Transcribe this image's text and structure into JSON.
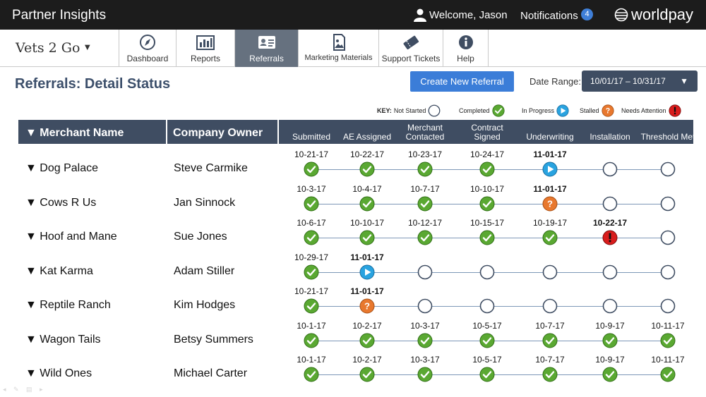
{
  "header": {
    "app_title": "Partner Insights",
    "welcome": "Welcome, Jason",
    "notifications_label": "Notifications",
    "notifications_count": "4",
    "brand": "worldpay"
  },
  "company_selector": {
    "name": "Vets 2 Go",
    "caret": "▼"
  },
  "tabs": [
    {
      "label": "Dashboard",
      "icon": "compass-icon",
      "active": false
    },
    {
      "label": "Reports",
      "icon": "bar-chart-icon",
      "active": false
    },
    {
      "label": "Referrals",
      "icon": "id-card-icon",
      "active": true
    },
    {
      "label": "Marketing Materials",
      "icon": "image-file-icon",
      "active": false
    },
    {
      "label": "Support Tickets",
      "icon": "ticket-icon",
      "active": false
    },
    {
      "label": "Help",
      "icon": "info-icon",
      "active": false
    }
  ],
  "page": {
    "title": "Referrals: Detail Status",
    "create_button": "Create New Referral",
    "date_range_label": "Date Range:",
    "date_range_value": "10/01/17 – 10/31/17"
  },
  "key": {
    "title": "KEY:",
    "items": [
      {
        "label": "Not Started",
        "status": "not_started"
      },
      {
        "label": "Completed",
        "status": "completed"
      },
      {
        "label": "In Progress",
        "status": "in_progress"
      },
      {
        "label": "Stalled",
        "status": "stalled"
      },
      {
        "label": "Needs Attention",
        "status": "attention"
      }
    ]
  },
  "colors": {
    "header_bg": "#3f4d62",
    "completed": "#5aa832",
    "in_progress": "#29a3e0",
    "stalled": "#e8782e",
    "attention": "#d91c1c",
    "accent": "#3b7dd8"
  },
  "table": {
    "col_merchant": "▼ Merchant Name",
    "col_owner": "Company Owner",
    "stages": [
      "Submitted",
      "AE Assigned",
      "Merchant Contacted",
      "Contract Signed",
      "Underwriting",
      "Installation",
      "Threshold Met"
    ],
    "rows": [
      {
        "merchant": "▼ Dog Palace",
        "owner": "Steve Carmike",
        "dates": [
          "10-21-17",
          "10-22-17",
          "10-23-17",
          "10-24-17",
          "11-01-17",
          "",
          ""
        ],
        "status": [
          "completed",
          "completed",
          "completed",
          "completed",
          "in_progress",
          "not_started",
          "not_started"
        ]
      },
      {
        "merchant": "▼ Cows R Us",
        "owner": "Jan Sinnock",
        "dates": [
          "10-3-17",
          "10-4-17",
          "10-7-17",
          "10-10-17",
          "11-01-17",
          "",
          ""
        ],
        "status": [
          "completed",
          "completed",
          "completed",
          "completed",
          "stalled",
          "not_started",
          "not_started"
        ]
      },
      {
        "merchant": "▼ Hoof and Mane",
        "owner": "Sue Jones",
        "dates": [
          "10-6-17",
          "10-10-17",
          "10-12-17",
          "10-15-17",
          "10-19-17",
          "10-22-17",
          ""
        ],
        "status": [
          "completed",
          "completed",
          "completed",
          "completed",
          "completed",
          "attention",
          "not_started"
        ]
      },
      {
        "merchant": "▼ Kat Karma",
        "owner": "Adam Stiller",
        "dates": [
          "10-29-17",
          "11-01-17",
          "",
          "",
          "",
          "",
          ""
        ],
        "status": [
          "completed",
          "in_progress",
          "not_started",
          "not_started",
          "not_started",
          "not_started",
          "not_started"
        ]
      },
      {
        "merchant": "▼ Reptile Ranch",
        "owner": "Kim Hodges",
        "dates": [
          "10-21-17",
          "11-01-17",
          "",
          "",
          "",
          "",
          ""
        ],
        "status": [
          "completed",
          "stalled",
          "not_started",
          "not_started",
          "not_started",
          "not_started",
          "not_started"
        ]
      },
      {
        "merchant": "▼ Wagon Tails",
        "owner": "Betsy Summers",
        "dates": [
          "10-1-17",
          "10-2-17",
          "10-3-17",
          "10-5-17",
          "10-7-17",
          "10-9-17",
          "10-11-17"
        ],
        "status": [
          "completed",
          "completed",
          "completed",
          "completed",
          "completed",
          "completed",
          "completed"
        ]
      },
      {
        "merchant": "▼ Wild Ones",
        "owner": "Michael Carter",
        "dates": [
          "10-1-17",
          "10-2-17",
          "10-3-17",
          "10-5-17",
          "10-7-17",
          "10-9-17",
          "10-11-17"
        ],
        "status": [
          "completed",
          "completed",
          "completed",
          "completed",
          "completed",
          "completed",
          "completed"
        ]
      }
    ]
  }
}
